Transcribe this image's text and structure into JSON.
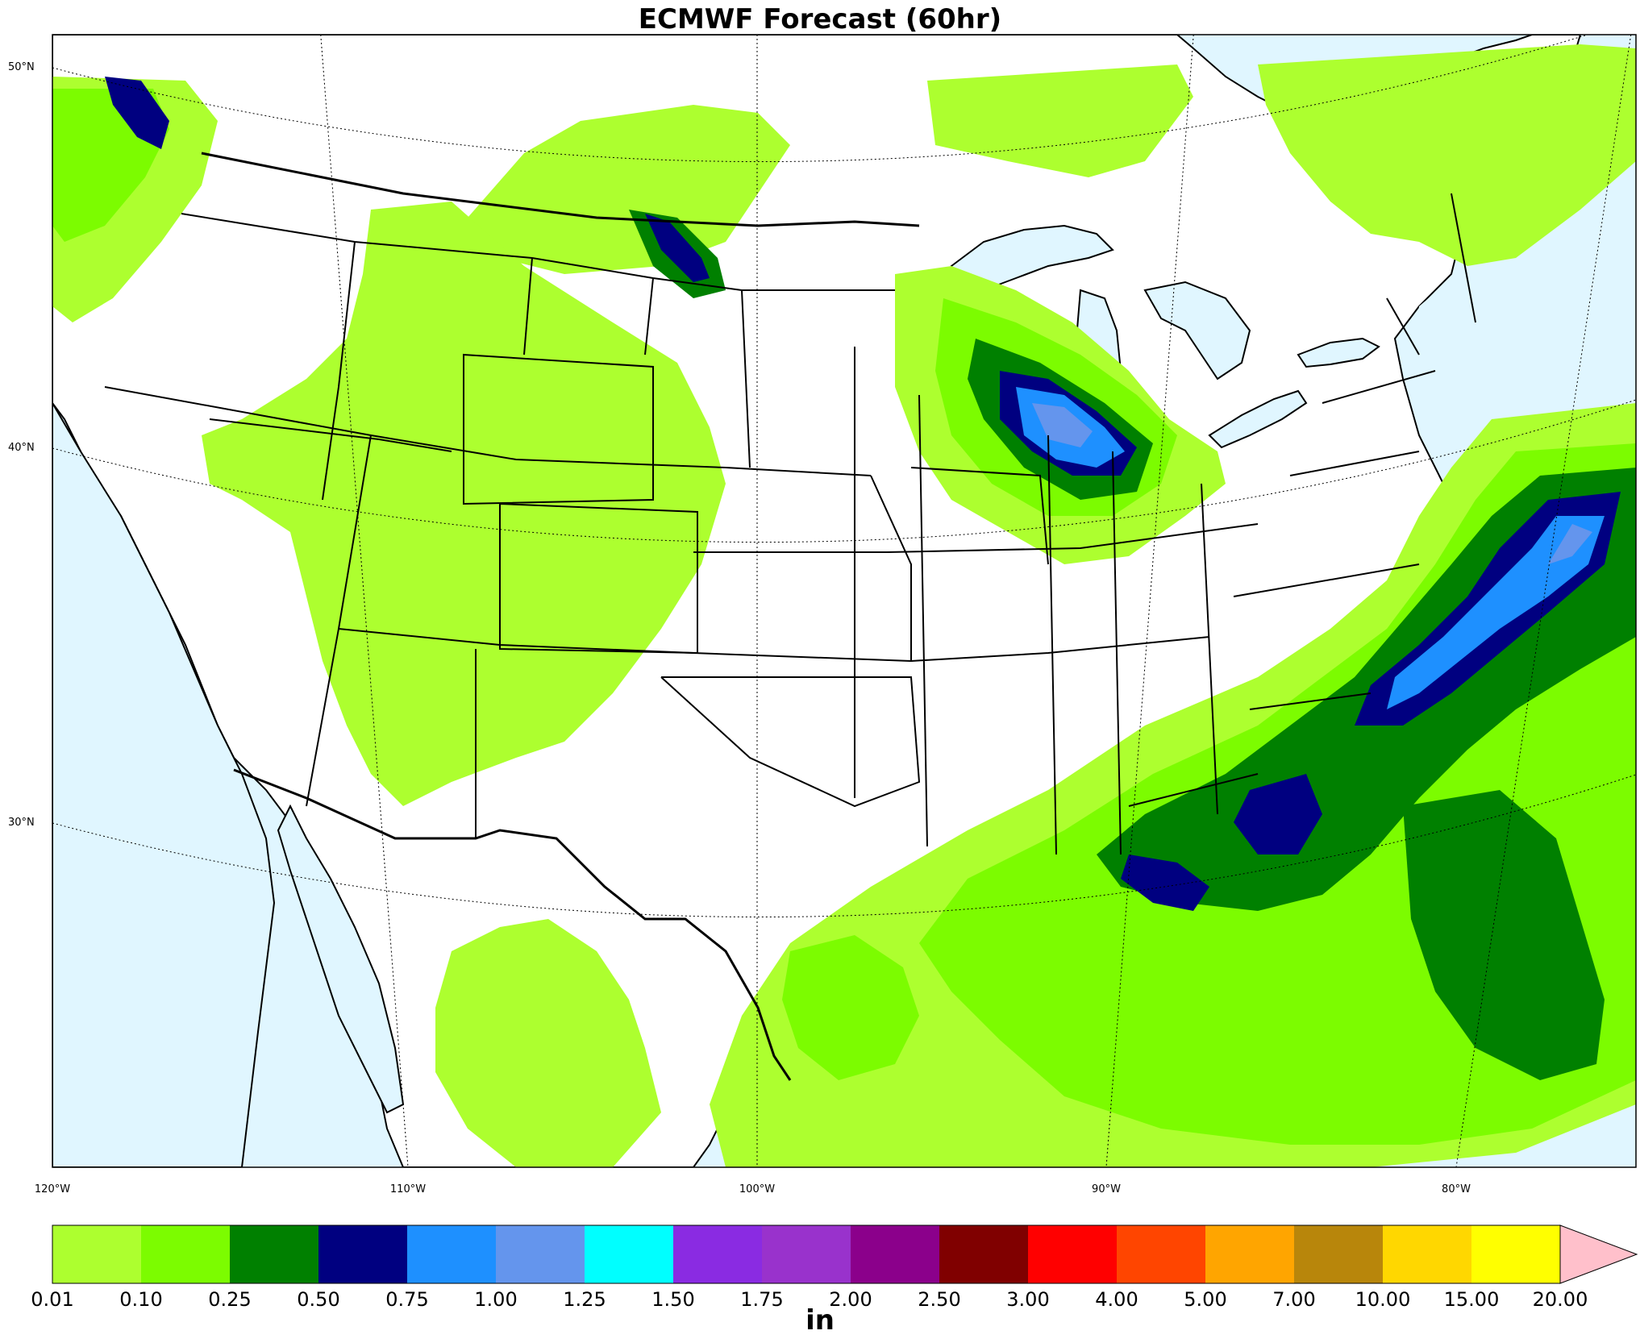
{
  "title": "ECMWF Forecast (60hr)",
  "lat_labels": [
    {
      "label": "50°N",
      "value": 50
    },
    {
      "label": "40°N",
      "value": 40
    },
    {
      "label": "30°N",
      "value": 30
    }
  ],
  "lon_labels": [
    {
      "label": "120°W",
      "value": -120
    },
    {
      "label": "110°W",
      "value": -110
    },
    {
      "label": "100°W",
      "value": -100
    },
    {
      "label": "90°W",
      "value": -90
    },
    {
      "label": "80°W",
      "value": -80
    }
  ],
  "colorbar": {
    "units": "in",
    "ticks": [
      "0.01",
      "0.10",
      "0.25",
      "0.50",
      "0.75",
      "1.00",
      "1.25",
      "1.50",
      "1.75",
      "2.00",
      "2.50",
      "3.00",
      "4.00",
      "5.00",
      "7.00",
      "10.00",
      "15.00",
      "20.00"
    ],
    "colors": [
      "#adff2f",
      "#7cfc00",
      "#008000",
      "#000080",
      "#1e90ff",
      "#6495ed",
      "#00ffff",
      "#8a2be2",
      "#9932cc",
      "#8b008b",
      "#800000",
      "#ff0000",
      "#ff4500",
      "#ffa500",
      "#b8860b",
      "#ffd700",
      "#ffff00"
    ],
    "extend_color": "#ffc0cb"
  },
  "colors": {
    "ocean": "#e0f6ff",
    "land": "#ffffff",
    "border": "#000000"
  }
}
